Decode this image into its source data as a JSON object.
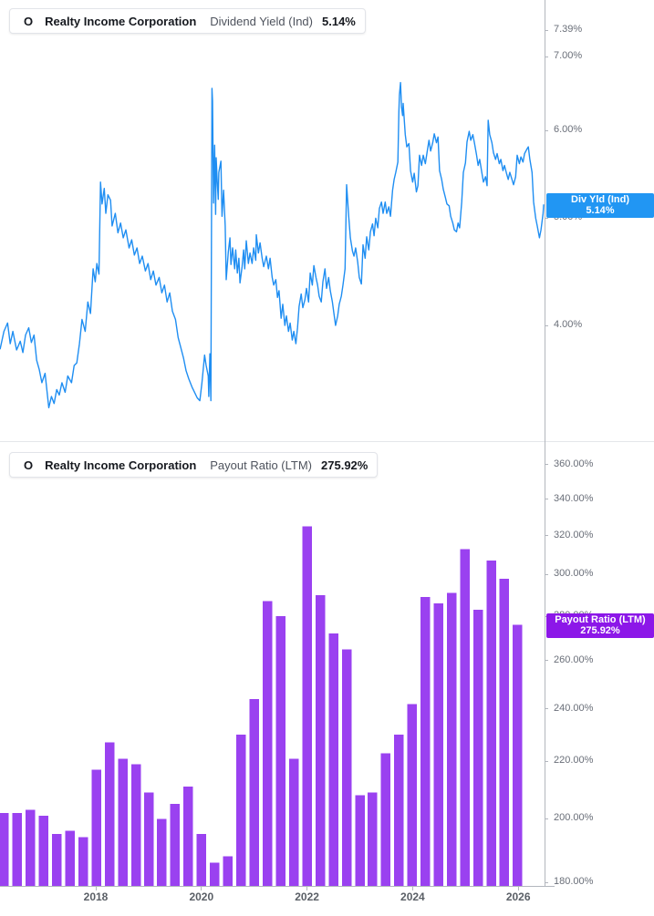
{
  "company": "Realty Income Corporation",
  "ticker": "O",
  "legend_top": {
    "symbol": "O",
    "company": "Realty Income Corporation",
    "metric": "Dividend Yield (Ind)",
    "value": "5.14%"
  },
  "legend_bottom": {
    "symbol": "O",
    "company": "Realty Income Corporation",
    "metric": "Payout Ratio (LTM)",
    "value": "275.92%"
  },
  "badge_top": {
    "line1": "Div Yld (Ind)",
    "line2": "5.14%"
  },
  "badge_bottom": {
    "line1": "Payout Ratio (LTM)",
    "line2": "275.92%"
  },
  "colors": {
    "line": "#1f8ef2",
    "line_badge": "#2196f3",
    "bar": "#9a41f0",
    "bar_badge": "#8c17e8",
    "axis_line": "#b2b6bd",
    "tick_text": "#696e78",
    "year_text": "#5a5f66"
  },
  "y_axis_top": {
    "ticks": [
      {
        "label": "7.39%",
        "value": 7.39
      },
      {
        "label": "7.00%",
        "value": 7.0
      },
      {
        "label": "6.00%",
        "value": 6.0
      },
      {
        "label": "5.00%",
        "value": 5.0
      },
      {
        "label": "4.00%",
        "value": 4.0
      }
    ]
  },
  "y_axis_bottom": {
    "ticks": [
      {
        "label": "360.00%",
        "value": 360
      },
      {
        "label": "340.00%",
        "value": 340
      },
      {
        "label": "320.00%",
        "value": 320
      },
      {
        "label": "300.00%",
        "value": 300
      },
      {
        "label": "280.00%",
        "value": 280
      },
      {
        "label": "260.00%",
        "value": 260
      },
      {
        "label": "240.00%",
        "value": 240
      },
      {
        "label": "220.00%",
        "value": 220
      },
      {
        "label": "200.00%",
        "value": 200
      },
      {
        "label": "180.00%",
        "value": 180
      }
    ]
  },
  "x_axis": {
    "ticks": [
      {
        "label": "2018",
        "year": 2018
      },
      {
        "label": "2020",
        "year": 2020
      },
      {
        "label": "2022",
        "year": 2022
      },
      {
        "label": "2024",
        "year": 2024
      },
      {
        "label": "2026",
        "year": 2026
      }
    ]
  },
  "chart_data": [
    {
      "type": "line",
      "panel": "top",
      "title": "Realty Income Corporation — Dividend Yield (Ind)",
      "series_name": "Div Yld (Ind)",
      "unit": "%",
      "color": "#1f8ef2",
      "y_scale": "log",
      "y_ticks": [
        7.39,
        7.0,
        6.0,
        5.0,
        4.0
      ],
      "x_range": [
        2016.19,
        2026.48
      ],
      "latest_value": 5.14,
      "legend_position": "top-left",
      "grid": false,
      "points": [
        [
          2016.19,
          3.81
        ],
        [
          2016.26,
          3.95
        ],
        [
          2016.33,
          4.02
        ],
        [
          2016.38,
          3.85
        ],
        [
          2016.43,
          3.95
        ],
        [
          2016.5,
          3.8
        ],
        [
          2016.57,
          3.87
        ],
        [
          2016.62,
          3.78
        ],
        [
          2016.67,
          3.92
        ],
        [
          2016.73,
          3.98
        ],
        [
          2016.78,
          3.86
        ],
        [
          2016.83,
          3.92
        ],
        [
          2016.88,
          3.72
        ],
        [
          2016.93,
          3.65
        ],
        [
          2016.98,
          3.55
        ],
        [
          2017.04,
          3.62
        ],
        [
          2017.11,
          3.37
        ],
        [
          2017.16,
          3.45
        ],
        [
          2017.21,
          3.4
        ],
        [
          2017.26,
          3.5
        ],
        [
          2017.31,
          3.46
        ],
        [
          2017.36,
          3.55
        ],
        [
          2017.42,
          3.48
        ],
        [
          2017.47,
          3.6
        ],
        [
          2017.54,
          3.55
        ],
        [
          2017.59,
          3.68
        ],
        [
          2017.64,
          3.7
        ],
        [
          2017.69,
          3.85
        ],
        [
          2017.74,
          4.05
        ],
        [
          2017.8,
          3.95
        ],
        [
          2017.85,
          4.2
        ],
        [
          2017.9,
          4.1
        ],
        [
          2017.95,
          4.5
        ],
        [
          2017.99,
          4.38
        ],
        [
          2018.02,
          4.55
        ],
        [
          2018.06,
          4.45
        ],
        [
          2018.09,
          5.39
        ],
        [
          2018.12,
          5.15
        ],
        [
          2018.16,
          5.32
        ],
        [
          2018.19,
          5.05
        ],
        [
          2018.23,
          5.25
        ],
        [
          2018.28,
          5.19
        ],
        [
          2018.31,
          4.92
        ],
        [
          2018.37,
          5.05
        ],
        [
          2018.42,
          4.85
        ],
        [
          2018.47,
          4.95
        ],
        [
          2018.52,
          4.8
        ],
        [
          2018.57,
          4.88
        ],
        [
          2018.63,
          4.7
        ],
        [
          2018.68,
          4.78
        ],
        [
          2018.73,
          4.63
        ],
        [
          2018.78,
          4.7
        ],
        [
          2018.83,
          4.55
        ],
        [
          2018.88,
          4.62
        ],
        [
          2018.94,
          4.48
        ],
        [
          2018.99,
          4.55
        ],
        [
          2019.04,
          4.4
        ],
        [
          2019.09,
          4.48
        ],
        [
          2019.14,
          4.35
        ],
        [
          2019.2,
          4.42
        ],
        [
          2019.25,
          4.28
        ],
        [
          2019.3,
          4.35
        ],
        [
          2019.35,
          4.2
        ],
        [
          2019.4,
          4.28
        ],
        [
          2019.45,
          4.12
        ],
        [
          2019.51,
          4.05
        ],
        [
          2019.56,
          3.9
        ],
        [
          2019.61,
          3.82
        ],
        [
          2019.66,
          3.74
        ],
        [
          2019.71,
          3.64
        ],
        [
          2019.76,
          3.58
        ],
        [
          2019.82,
          3.52
        ],
        [
          2019.87,
          3.48
        ],
        [
          2019.92,
          3.44
        ],
        [
          2019.97,
          3.42
        ],
        [
          2020.01,
          3.55
        ],
        [
          2020.06,
          3.76
        ],
        [
          2020.09,
          3.68
        ],
        [
          2020.13,
          3.6
        ],
        [
          2020.14,
          3.45
        ],
        [
          2020.16,
          3.77
        ],
        [
          2020.18,
          3.42
        ],
        [
          2020.2,
          6.55
        ],
        [
          2020.21,
          6.38
        ],
        [
          2020.23,
          5.16
        ],
        [
          2020.25,
          5.82
        ],
        [
          2020.27,
          5.04
        ],
        [
          2020.28,
          5.67
        ],
        [
          2020.3,
          5.39
        ],
        [
          2020.32,
          5.2
        ],
        [
          2020.33,
          5.5
        ],
        [
          2020.37,
          5.63
        ],
        [
          2020.39,
          5.02
        ],
        [
          2020.42,
          5.3
        ],
        [
          2020.45,
          4.92
        ],
        [
          2020.47,
          4.4
        ],
        [
          2020.51,
          4.66
        ],
        [
          2020.54,
          4.8
        ],
        [
          2020.56,
          4.54
        ],
        [
          2020.59,
          4.7
        ],
        [
          2020.63,
          4.5
        ],
        [
          2020.65,
          4.68
        ],
        [
          2020.68,
          4.46
        ],
        [
          2020.71,
          4.6
        ],
        [
          2020.73,
          4.37
        ],
        [
          2020.77,
          4.52
        ],
        [
          2020.8,
          4.68
        ],
        [
          2020.82,
          4.5
        ],
        [
          2020.85,
          4.77
        ],
        [
          2020.89,
          4.55
        ],
        [
          2020.92,
          4.65
        ],
        [
          2020.96,
          4.55
        ],
        [
          2020.99,
          4.7
        ],
        [
          2021.03,
          4.58
        ],
        [
          2021.04,
          4.83
        ],
        [
          2021.08,
          4.65
        ],
        [
          2021.11,
          4.75
        ],
        [
          2021.15,
          4.6
        ],
        [
          2021.18,
          4.52
        ],
        [
          2021.23,
          4.62
        ],
        [
          2021.27,
          4.5
        ],
        [
          2021.3,
          4.6
        ],
        [
          2021.34,
          4.42
        ],
        [
          2021.37,
          4.35
        ],
        [
          2021.41,
          4.4
        ],
        [
          2021.44,
          4.24
        ],
        [
          2021.47,
          4.3
        ],
        [
          2021.51,
          4.06
        ],
        [
          2021.54,
          4.18
        ],
        [
          2021.58,
          4.0
        ],
        [
          2021.61,
          4.08
        ],
        [
          2021.65,
          3.95
        ],
        [
          2021.68,
          4.02
        ],
        [
          2021.72,
          3.88
        ],
        [
          2021.75,
          3.95
        ],
        [
          2021.79,
          3.85
        ],
        [
          2021.82,
          3.98
        ],
        [
          2021.85,
          4.16
        ],
        [
          2021.89,
          4.27
        ],
        [
          2021.92,
          4.15
        ],
        [
          2021.96,
          4.22
        ],
        [
          2021.99,
          4.32
        ],
        [
          2022.03,
          4.2
        ],
        [
          2022.06,
          4.46
        ],
        [
          2022.1,
          4.35
        ],
        [
          2022.13,
          4.53
        ],
        [
          2022.17,
          4.42
        ],
        [
          2022.2,
          4.35
        ],
        [
          2022.23,
          4.25
        ],
        [
          2022.27,
          4.2
        ],
        [
          2022.3,
          4.38
        ],
        [
          2022.34,
          4.5
        ],
        [
          2022.37,
          4.32
        ],
        [
          2022.41,
          4.42
        ],
        [
          2022.44,
          4.3
        ],
        [
          2022.48,
          4.2
        ],
        [
          2022.51,
          4.1
        ],
        [
          2022.54,
          4.0
        ],
        [
          2022.58,
          4.08
        ],
        [
          2022.61,
          4.18
        ],
        [
          2022.65,
          4.25
        ],
        [
          2022.68,
          4.35
        ],
        [
          2022.72,
          4.5
        ],
        [
          2022.75,
          5.36
        ],
        [
          2022.79,
          5.02
        ],
        [
          2022.82,
          4.8
        ],
        [
          2022.86,
          4.67
        ],
        [
          2022.89,
          4.62
        ],
        [
          2022.92,
          4.7
        ],
        [
          2022.96,
          4.56
        ],
        [
          2022.99,
          4.42
        ],
        [
          2023.03,
          4.36
        ],
        [
          2023.06,
          4.73
        ],
        [
          2023.1,
          4.6
        ],
        [
          2023.13,
          4.81
        ],
        [
          2023.17,
          4.68
        ],
        [
          2023.2,
          4.86
        ],
        [
          2023.24,
          4.94
        ],
        [
          2023.27,
          4.82
        ],
        [
          2023.3,
          5.0
        ],
        [
          2023.34,
          4.9
        ],
        [
          2023.37,
          5.1
        ],
        [
          2023.41,
          5.17
        ],
        [
          2023.44,
          5.05
        ],
        [
          2023.48,
          5.17
        ],
        [
          2023.51,
          5.05
        ],
        [
          2023.55,
          5.12
        ],
        [
          2023.58,
          5.02
        ],
        [
          2023.62,
          5.3
        ],
        [
          2023.65,
          5.42
        ],
        [
          2023.68,
          5.5
        ],
        [
          2023.72,
          5.62
        ],
        [
          2023.74,
          6.24
        ],
        [
          2023.75,
          6.46
        ],
        [
          2023.77,
          6.63
        ],
        [
          2023.79,
          6.3
        ],
        [
          2023.81,
          6.19
        ],
        [
          2023.82,
          6.35
        ],
        [
          2023.86,
          5.95
        ],
        [
          2023.89,
          5.8
        ],
        [
          2023.93,
          5.84
        ],
        [
          2023.96,
          5.52
        ],
        [
          2024.0,
          5.39
        ],
        [
          2024.03,
          5.49
        ],
        [
          2024.07,
          5.28
        ],
        [
          2024.1,
          5.35
        ],
        [
          2024.13,
          5.7
        ],
        [
          2024.17,
          5.58
        ],
        [
          2024.2,
          5.7
        ],
        [
          2024.24,
          5.6
        ],
        [
          2024.27,
          5.72
        ],
        [
          2024.31,
          5.88
        ],
        [
          2024.34,
          5.75
        ],
        [
          2024.38,
          5.85
        ],
        [
          2024.41,
          5.96
        ],
        [
          2024.45,
          5.85
        ],
        [
          2024.48,
          5.92
        ],
        [
          2024.51,
          5.52
        ],
        [
          2024.55,
          5.42
        ],
        [
          2024.58,
          5.31
        ],
        [
          2024.62,
          5.22
        ],
        [
          2024.65,
          5.15
        ],
        [
          2024.69,
          5.13
        ],
        [
          2024.72,
          5.02
        ],
        [
          2024.76,
          4.95
        ],
        [
          2024.79,
          4.88
        ],
        [
          2024.83,
          4.86
        ],
        [
          2024.86,
          4.95
        ],
        [
          2024.89,
          4.9
        ],
        [
          2024.93,
          5.17
        ],
        [
          2024.96,
          5.5
        ],
        [
          2025.0,
          5.61
        ],
        [
          2025.03,
          5.86
        ],
        [
          2025.07,
          5.99
        ],
        [
          2025.1,
          5.88
        ],
        [
          2025.14,
          5.95
        ],
        [
          2025.17,
          5.85
        ],
        [
          2025.21,
          5.7
        ],
        [
          2025.24,
          5.58
        ],
        [
          2025.27,
          5.65
        ],
        [
          2025.31,
          5.5
        ],
        [
          2025.34,
          5.39
        ],
        [
          2025.38,
          5.45
        ],
        [
          2025.41,
          5.35
        ],
        [
          2025.43,
          6.13
        ],
        [
          2025.46,
          5.95
        ],
        [
          2025.5,
          5.85
        ],
        [
          2025.53,
          5.73
        ],
        [
          2025.57,
          5.65
        ],
        [
          2025.6,
          5.72
        ],
        [
          2025.64,
          5.6
        ],
        [
          2025.67,
          5.65
        ],
        [
          2025.71,
          5.52
        ],
        [
          2025.74,
          5.58
        ],
        [
          2025.78,
          5.48
        ],
        [
          2025.81,
          5.42
        ],
        [
          2025.84,
          5.5
        ],
        [
          2025.88,
          5.42
        ],
        [
          2025.91,
          5.36
        ],
        [
          2025.95,
          5.45
        ],
        [
          2025.98,
          5.7
        ],
        [
          2026.02,
          5.6
        ],
        [
          2026.05,
          5.68
        ],
        [
          2026.09,
          5.62
        ],
        [
          2026.12,
          5.72
        ],
        [
          2026.16,
          5.77
        ],
        [
          2026.19,
          5.8
        ],
        [
          2026.22,
          5.65
        ],
        [
          2026.26,
          5.5
        ],
        [
          2026.29,
          5.17
        ],
        [
          2026.33,
          5.0
        ],
        [
          2026.36,
          4.92
        ],
        [
          2026.4,
          4.8
        ],
        [
          2026.43,
          4.88
        ],
        [
          2026.47,
          5.05
        ],
        [
          2026.48,
          5.14
        ]
      ]
    },
    {
      "type": "bar",
      "panel": "bottom",
      "title": "Realty Income Corporation — Payout Ratio (LTM)",
      "series_name": "Payout Ratio (LTM)",
      "unit": "%",
      "color": "#9a41f0",
      "y_scale": "log",
      "y_ticks": [
        360,
        340,
        320,
        300,
        280,
        260,
        240,
        220,
        200,
        180
      ],
      "baseline": 180,
      "latest_value": 275.92,
      "legend_position": "top-left",
      "grid": false,
      "frequency": "quarterly",
      "x": [
        2016.26,
        2016.51,
        2016.76,
        2017.01,
        2017.26,
        2017.51,
        2017.76,
        2018.01,
        2018.26,
        2018.51,
        2018.76,
        2019.01,
        2019.25,
        2019.5,
        2019.75,
        2020.0,
        2020.25,
        2020.5,
        2020.75,
        2021.0,
        2021.25,
        2021.5,
        2021.75,
        2022.0,
        2022.25,
        2022.5,
        2022.75,
        2023.0,
        2023.24,
        2023.49,
        2023.74,
        2023.99,
        2024.24,
        2024.49,
        2024.74,
        2024.99,
        2025.24,
        2025.49,
        2025.73,
        2025.98
      ],
      "values": [
        202,
        202,
        203,
        201,
        195,
        196,
        194,
        217,
        227,
        221,
        219,
        209,
        200,
        205,
        211,
        195,
        186,
        188,
        230,
        244,
        287,
        280,
        221,
        325,
        290,
        272,
        265,
        208,
        209,
        223,
        230,
        242,
        289,
        286,
        291,
        313,
        283,
        307,
        298,
        276
      ]
    }
  ]
}
